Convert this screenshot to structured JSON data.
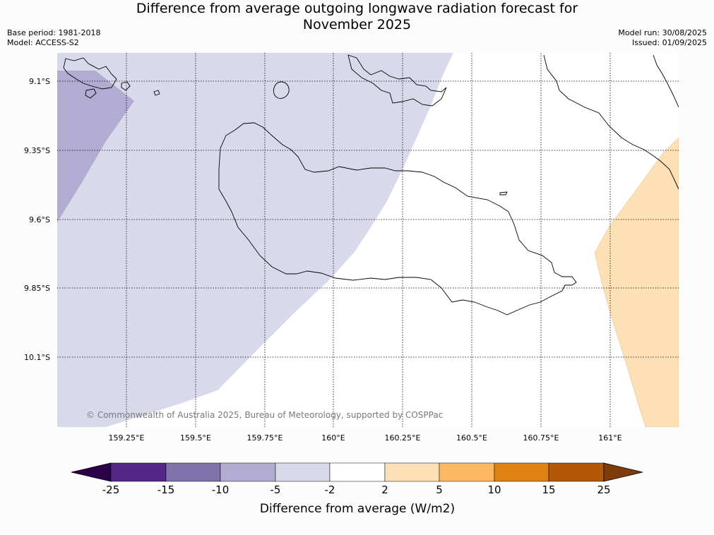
{
  "title": {
    "line1": "Difference from average outgoing longwave radiation forecast for",
    "line2": "November 2025"
  },
  "meta": {
    "base_period": "Base period: 1981-2018",
    "model": "Model: ACCESS-S2",
    "model_run": "Model run: 30/08/2025",
    "issued": "Issued: 01/09/2025"
  },
  "map": {
    "lat_ticks": [
      "9.1°S",
      "9.35°S",
      "9.6°S",
      "9.85°S",
      "10.1°S"
    ],
    "lon_ticks": [
      "159.25°E",
      "159.5°E",
      "159.75°E",
      "160°E",
      "160.25°E",
      "160.5°E",
      "160.75°E",
      "161°E"
    ],
    "copyright": "© Commonwealth of Australia 2025, Bureau of Meteorology, supported by COSPPac"
  },
  "legend": {
    "ticks": [
      "-25",
      "-15",
      "-10",
      "-5",
      "-2",
      "2",
      "5",
      "10",
      "15",
      "25"
    ],
    "label": "Difference from average (W/m2)",
    "colors": [
      "#2d004b",
      "#542788",
      "#8073ac",
      "#b2abd2",
      "#d8daeb",
      "#ffffff",
      "#fee0b6",
      "#fdb863",
      "#e08214",
      "#b35806",
      "#7f3b08"
    ]
  }
}
